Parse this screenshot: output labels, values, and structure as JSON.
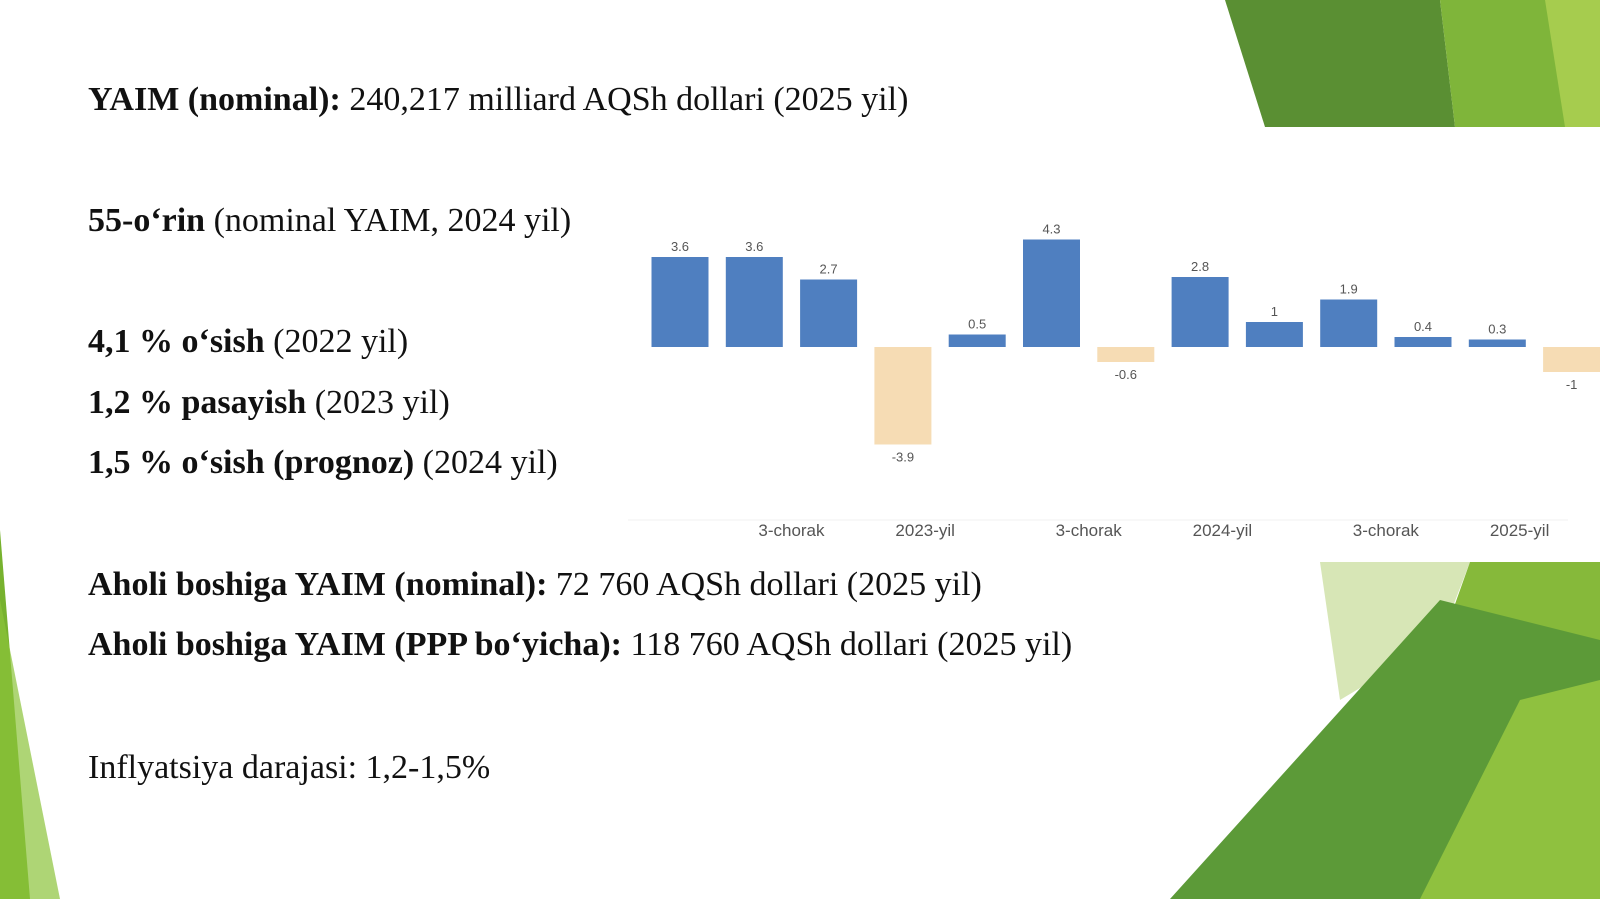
{
  "slide": {
    "gdp_nominal": {
      "label": "YAIM (nominal):",
      "value": " 240,217 milliard AQSh dollari (2025 yil)"
    },
    "rank": {
      "label": "55-o‘rin",
      "value": " (nominal YAIM, 2024 yil)"
    },
    "growth_2022": {
      "label": "4,1 % o‘sish",
      "value": " (2022 yil)"
    },
    "decline_2023": {
      "label": "1,2 % pasayish",
      "value": " (2023 yil)"
    },
    "growth_2024": {
      "label": "1,5 % o‘sish (prognoz)",
      "value": " (2024 yil)"
    },
    "gdp_per_capita_nominal": {
      "label": "Aholi boshiga YAIM (nominal):",
      "value": " 72 760 AQSh dollari (2025 yil)"
    },
    "gdp_per_capita_ppp": {
      "label": "Aholi boshiga YAIM (PPP bo‘yicha):",
      "value": " 118 760 AQSh dollari (2025 yil)"
    },
    "inflation": {
      "label": "Inflyatsiya darajasi:  1,2-1,5%"
    }
  },
  "colors": {
    "positive_bar": "#4f7fc0",
    "negative_bar": "#f6dcb4",
    "green_dark": "#5c9a38",
    "green_light": "#86b93a"
  },
  "chart_data": {
    "type": "bar",
    "values": [
      3.6,
      3.6,
      2.7,
      -3.9,
      0.5,
      4.3,
      -0.6,
      2.8,
      1,
      1.9,
      0.4,
      0.3,
      -1
    ],
    "value_labels": [
      "3.6",
      "3.6",
      "2.7",
      "-3.9",
      "0.5",
      "4.3",
      "-0.6",
      "2.8",
      "1",
      "1.9",
      "0.4",
      "0.3",
      "-1"
    ],
    "x_tick_labels": [
      "3-chorak",
      "2023-yil",
      "3-chorak",
      "2024-yil",
      "3-chorak",
      "2025-yil"
    ],
    "x_tick_positions": [
      1.5,
      3.3,
      5.5,
      7.3,
      9.5,
      11.3
    ],
    "ylim": [
      -4.5,
      5
    ],
    "grid": false,
    "legend": "none"
  }
}
